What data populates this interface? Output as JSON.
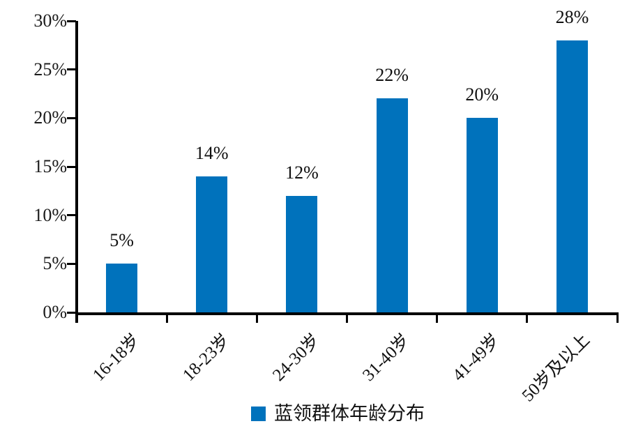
{
  "chart_data": {
    "type": "bar",
    "title": "",
    "categories": [
      "16-18岁",
      "18-23岁",
      "24-30岁",
      "31-40岁",
      "41-49岁",
      "50岁及以上"
    ],
    "values": [
      5,
      14,
      12,
      22,
      20,
      28
    ],
    "value_labels": [
      "5%",
      "14%",
      "12%",
      "22%",
      "20%",
      "28%"
    ],
    "y_ticks": [
      0,
      5,
      10,
      15,
      20,
      25,
      30
    ],
    "y_tick_labels": [
      "0%",
      "5%",
      "10%",
      "15%",
      "20%",
      "25%",
      "30%"
    ],
    "ylim": [
      0,
      30
    ],
    "xlabel": "",
    "ylabel": "",
    "grid": "off",
    "legend_position": "bottom-center",
    "legend": [
      "蓝领群体年龄分布"
    ]
  },
  "legend": {
    "label": "蓝领群体年龄分布"
  },
  "colors": {
    "bar": "#0072BC",
    "axis": "#000000",
    "text": "#111111",
    "background": "#ffffff"
  }
}
